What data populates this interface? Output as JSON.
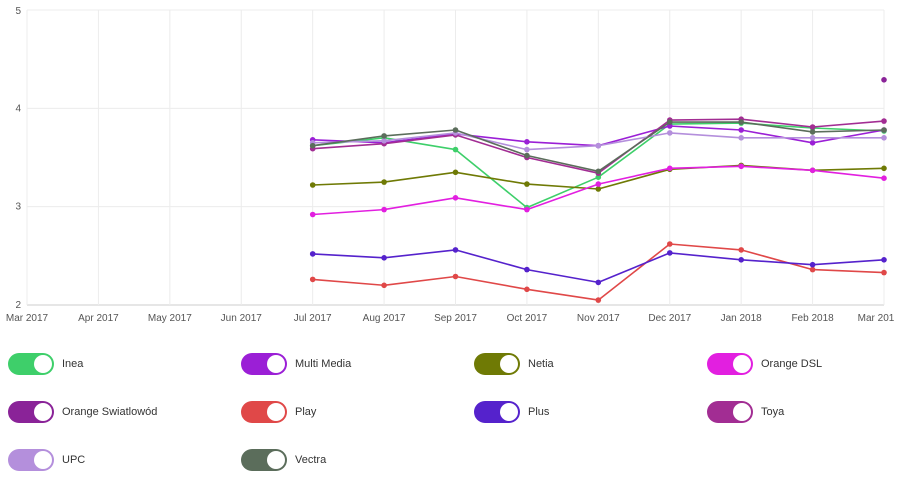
{
  "chart_data": {
    "type": "line",
    "title": "",
    "xlabel": "",
    "ylabel": "",
    "x": [
      "Mar 2017",
      "Apr 2017",
      "May 2017",
      "Jun 2017",
      "Jul 2017",
      "Aug 2017",
      "Sep 2017",
      "Oct 2017",
      "Nov 2017",
      "Dec 2017",
      "Jan 2018",
      "Feb 2018",
      "Mar 201"
    ],
    "ylim": [
      2,
      5
    ],
    "yticks": [
      2,
      3,
      4,
      5
    ],
    "grid": true,
    "legend_position": "bottom",
    "series": [
      {
        "name": "Inea",
        "color": "#3ecf6a",
        "values": [
          null,
          null,
          null,
          null,
          3.62,
          3.7,
          3.58,
          2.99,
          3.3,
          3.84,
          3.85,
          3.8,
          3.77
        ]
      },
      {
        "name": "Multi Media",
        "color": "#9b1fd6",
        "values": [
          null,
          null,
          null,
          null,
          3.68,
          3.65,
          3.74,
          3.66,
          3.62,
          3.82,
          3.78,
          3.65,
          3.78
        ]
      },
      {
        "name": "Netia",
        "color": "#6f7a05",
        "values": [
          null,
          null,
          null,
          null,
          3.22,
          3.25,
          3.35,
          3.23,
          3.18,
          3.38,
          3.42,
          3.37,
          3.39
        ]
      },
      {
        "name": "Orange DSL",
        "color": "#e21fe0",
        "values": [
          null,
          null,
          null,
          null,
          2.92,
          2.97,
          3.09,
          2.97,
          3.23,
          3.39,
          3.41,
          3.37,
          3.29
        ]
      },
      {
        "name": "Orange Swiatlowód",
        "color": "#8a2398",
        "values": [
          null,
          null,
          null,
          null,
          null,
          null,
          null,
          null,
          null,
          null,
          null,
          null,
          4.29
        ]
      },
      {
        "name": "Play",
        "color": "#e04848",
        "values": [
          null,
          null,
          null,
          null,
          2.26,
          2.2,
          2.29,
          2.16,
          2.05,
          2.62,
          2.56,
          2.36,
          2.33
        ]
      },
      {
        "name": "Plus",
        "color": "#5522cc",
        "values": [
          null,
          null,
          null,
          null,
          2.52,
          2.48,
          2.56,
          2.36,
          2.23,
          2.53,
          2.46,
          2.41,
          2.46
        ]
      },
      {
        "name": "Toya",
        "color": "#a22d93",
        "values": [
          null,
          null,
          null,
          null,
          3.59,
          3.64,
          3.73,
          3.5,
          3.34,
          3.88,
          3.89,
          3.81,
          3.87
        ]
      },
      {
        "name": "UPC",
        "color": "#b48fdc",
        "values": [
          null,
          null,
          null,
          null,
          3.65,
          3.67,
          3.75,
          3.58,
          3.62,
          3.75,
          3.7,
          3.7,
          3.7
        ]
      },
      {
        "name": "Vectra",
        "color": "#5b6d5b",
        "values": [
          null,
          null,
          null,
          null,
          3.62,
          3.72,
          3.78,
          3.52,
          3.36,
          3.86,
          3.86,
          3.76,
          3.78
        ]
      }
    ]
  },
  "legend": {
    "items": [
      {
        "label": "Inea",
        "color": "#3ecf6a",
        "on": true
      },
      {
        "label": "Multi Media",
        "color": "#9b1fd6",
        "on": true
      },
      {
        "label": "Netia",
        "color": "#6f7a05",
        "on": true
      },
      {
        "label": "Orange DSL",
        "color": "#e21fe0",
        "on": true
      },
      {
        "label": "Orange Swiatlowód",
        "color": "#8a2398",
        "on": true
      },
      {
        "label": "Play",
        "color": "#e04848",
        "on": true
      },
      {
        "label": "Plus",
        "color": "#5522cc",
        "on": true
      },
      {
        "label": "Toya",
        "color": "#a22d93",
        "on": true
      },
      {
        "label": "UPC",
        "color": "#b48fdc",
        "on": true
      },
      {
        "label": "Vectra",
        "color": "#5b6d5b",
        "on": true
      }
    ]
  }
}
